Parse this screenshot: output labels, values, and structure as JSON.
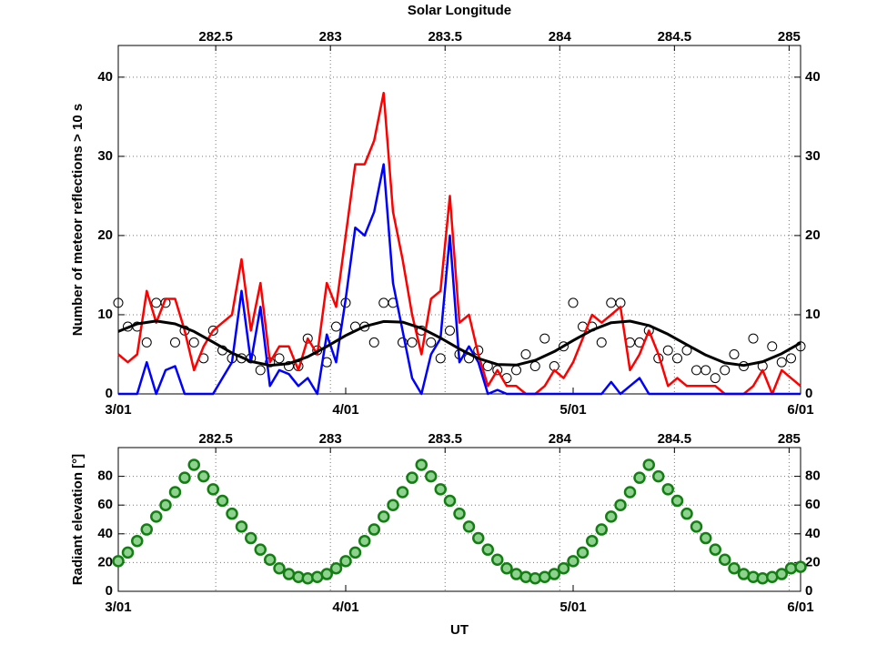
{
  "chart_data": [
    {
      "type": "line",
      "x2label": "Solar Longitude",
      "ylabel": "Number of meteor reflections > 10 s",
      "xlim": [
        3,
        6
      ],
      "xticks": [
        {
          "value": 3,
          "label": "3/01"
        },
        {
          "value": 4,
          "label": "4/01"
        },
        {
          "value": 5,
          "label": "5/01"
        },
        {
          "value": 6,
          "label": "6/01"
        }
      ],
      "x2lim": [
        282.075,
        285.05
      ],
      "x2ticks": [
        282.5,
        283,
        283.5,
        284,
        284.5,
        285
      ],
      "ylim": [
        0,
        44
      ],
      "yticks": [
        0,
        10,
        20,
        30,
        40
      ],
      "grid": true,
      "x": [
        3,
        3.042,
        3.083,
        3.125,
        3.167,
        3.208,
        3.25,
        3.292,
        3.333,
        3.375,
        3.417,
        3.458,
        3.5,
        3.542,
        3.583,
        3.625,
        3.667,
        3.708,
        3.75,
        3.792,
        3.833,
        3.875,
        3.917,
        3.958,
        4,
        4.042,
        4.083,
        4.125,
        4.167,
        4.208,
        4.25,
        4.292,
        4.333,
        4.375,
        4.417,
        4.458,
        4.5,
        4.542,
        4.583,
        4.625,
        4.667,
        4.708,
        4.75,
        4.792,
        4.833,
        4.875,
        4.917,
        4.958,
        5,
        5.042,
        5.083,
        5.125,
        5.167,
        5.208,
        5.25,
        5.292,
        5.333,
        5.375,
        5.417,
        5.458,
        5.5,
        5.542,
        5.583,
        5.625,
        5.667,
        5.708,
        5.75,
        5.792,
        5.833,
        5.875,
        5.917,
        5.958,
        6
      ],
      "series": [
        {
          "style": "marker",
          "color": "#000000",
          "values": [
            11.5,
            8.5,
            8.5,
            6.5,
            11.5,
            11.5,
            6.5,
            8,
            6.5,
            4.5,
            8,
            5.5,
            4.5,
            4.5,
            4.5,
            3,
            4,
            4.5,
            3.5,
            3.5,
            7,
            5.5,
            4,
            8.5,
            11.5,
            8.5,
            8.5,
            6.5,
            11.5,
            11.5,
            6.5,
            6.5,
            8,
            6.5,
            4.5,
            8,
            5,
            4.5,
            5.5,
            3.5,
            3,
            2,
            3,
            5,
            3.5,
            7,
            3.5,
            6,
            11.5,
            8.5,
            8.5,
            6.5,
            11.5,
            11.5,
            6.5,
            6.5,
            8,
            4.5,
            5.5,
            4.5,
            5.5,
            3,
            3,
            2,
            3,
            5,
            3.5,
            7,
            3.5,
            6,
            4,
            4.5,
            6
          ]
        },
        {
          "style": "line",
          "color": "#ff0000",
          "values": [
            5,
            4,
            5,
            13,
            9,
            12,
            12,
            8,
            3,
            6,
            8,
            9,
            10,
            17,
            8,
            14,
            4,
            6,
            6,
            3,
            7,
            5,
            14,
            11,
            20,
            29,
            29,
            32,
            38,
            23,
            17,
            10,
            5,
            12,
            13,
            25,
            9,
            10,
            5,
            1,
            3,
            1,
            1,
            0,
            0,
            1,
            3,
            2,
            4,
            7,
            10,
            9,
            10,
            11,
            3,
            5,
            8,
            5,
            1,
            2,
            1,
            1,
            1,
            1,
            0,
            0,
            0,
            1,
            3,
            0,
            3,
            2,
            1
          ]
        },
        {
          "style": "line",
          "color": "#0000ff",
          "values": [
            0,
            0,
            0,
            4,
            0,
            3,
            3.5,
            0,
            0,
            0,
            0,
            2,
            4,
            13,
            4,
            11,
            1,
            3,
            2.5,
            1,
            2,
            0,
            7.5,
            4,
            12,
            21,
            20,
            23,
            29,
            14,
            8,
            2,
            0,
            5,
            7,
            20,
            4,
            6,
            4,
            0,
            0.5,
            0,
            0,
            0,
            0,
            0,
            0,
            0,
            0,
            0,
            0,
            0,
            1.5,
            0,
            1,
            2,
            0,
            0,
            0,
            0,
            0,
            0,
            0,
            0,
            0,
            0,
            0,
            0,
            0,
            0,
            0,
            0,
            0
          ]
        },
        {
          "style": "line",
          "color": "#000000",
          "x": [
            3,
            3.083,
            3.167,
            3.25,
            3.333,
            3.417,
            3.5,
            3.583,
            3.667,
            3.75,
            3.833,
            3.917,
            4,
            4.083,
            4.167,
            4.25,
            4.333,
            4.417,
            4.5,
            4.583,
            4.667,
            4.75,
            4.833,
            4.917,
            5,
            5.083,
            5.167,
            5.25,
            5.333,
            5.417,
            5.5,
            5.583,
            5.667,
            5.75,
            5.833,
            5.917,
            6
          ],
          "values": [
            7.88,
            8.85,
            9.2,
            8.85,
            7.88,
            6.54,
            5.17,
            4.1,
            3.61,
            3.83,
            4.69,
            5.98,
            7.38,
            8.52,
            9.15,
            9.06,
            8.3,
            7.07,
            5.69,
            4.48,
            3.72,
            3.64,
            4.24,
            5.35,
            6.74,
            8.05,
            8.99,
            9.19,
            8.64,
            7.54,
            6.21,
            4.9,
            3.92,
            3.6,
            4.07,
            5.09,
            6.43
          ]
        }
      ]
    },
    {
      "type": "scatter",
      "ylabel": "Radiant elevation [°]",
      "xlabel": "UT",
      "xlim": [
        3,
        6
      ],
      "xticks": [
        {
          "value": 3,
          "label": "3/01"
        },
        {
          "value": 4,
          "label": "4/01"
        },
        {
          "value": 5,
          "label": "5/01"
        },
        {
          "value": 6,
          "label": "6/01"
        }
      ],
      "x2lim": [
        282.075,
        285.05
      ],
      "x2ticks": [
        282.5,
        283,
        283.5,
        284,
        284.5,
        285
      ],
      "ylim": [
        0,
        100
      ],
      "yticks": [
        0,
        20,
        40,
        60,
        80
      ],
      "grid": true,
      "x": [
        3,
        3.042,
        3.083,
        3.125,
        3.167,
        3.208,
        3.25,
        3.292,
        3.333,
        3.375,
        3.417,
        3.458,
        3.5,
        3.542,
        3.583,
        3.625,
        3.667,
        3.708,
        3.75,
        3.792,
        3.833,
        3.875,
        3.917,
        3.958,
        4,
        4.042,
        4.083,
        4.125,
        4.167,
        4.208,
        4.25,
        4.292,
        4.333,
        4.375,
        4.417,
        4.458,
        4.5,
        4.542,
        4.583,
        4.625,
        4.667,
        4.708,
        4.75,
        4.792,
        4.833,
        4.875,
        4.917,
        4.958,
        5,
        5.042,
        5.083,
        5.125,
        5.167,
        5.208,
        5.25,
        5.292,
        5.333,
        5.375,
        5.417,
        5.458,
        5.5,
        5.542,
        5.583,
        5.625,
        5.667,
        5.708,
        5.75,
        5.792,
        5.833,
        5.875,
        5.917,
        5.958,
        6
      ],
      "series": [
        {
          "style": "marker",
          "color": "#137f13",
          "fill": "#8fd18f",
          "values": [
            21,
            27,
            35,
            43,
            52,
            60,
            69,
            79,
            88,
            80,
            71,
            63,
            54,
            45,
            37,
            29,
            22,
            16,
            12,
            10,
            9,
            10,
            12,
            16,
            21,
            27,
            35,
            43,
            52,
            60,
            69,
            79,
            88,
            80,
            71,
            63,
            54,
            45,
            37,
            29,
            22,
            16,
            12,
            10,
            9,
            10,
            12,
            16,
            21,
            27,
            35,
            43,
            52,
            60,
            69,
            79,
            88,
            80,
            71,
            63,
            54,
            45,
            37,
            29,
            22,
            16,
            12,
            10,
            9,
            10,
            12,
            16,
            17
          ]
        }
      ]
    }
  ]
}
